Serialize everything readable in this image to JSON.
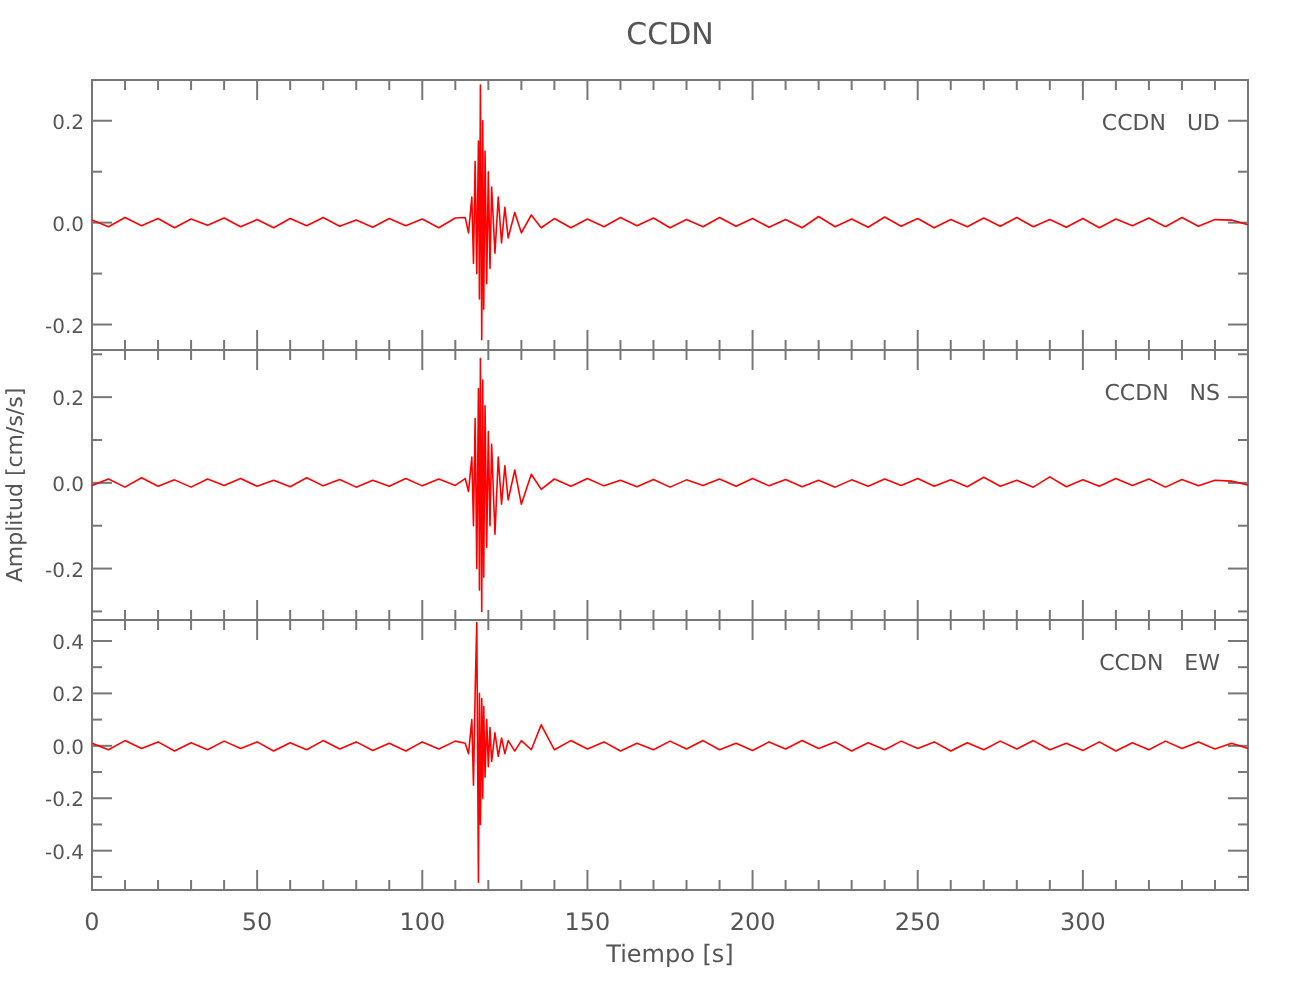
{
  "chart_data": [
    {
      "type": "line",
      "title": "CCDN",
      "annotations": [
        "CCDN   UD"
      ],
      "tick_labels": "y",
      "xlim": [
        0,
        350
      ],
      "ylim": [
        -0.25,
        0.28
      ],
      "xticks": [
        {
          "value": 0,
          "label": null
        },
        {
          "value": 10,
          "label": null
        },
        {
          "value": 20,
          "label": null
        },
        {
          "value": 30,
          "label": null
        },
        {
          "value": 40,
          "label": null
        },
        {
          "value": 50,
          "label": null
        },
        {
          "value": 60,
          "label": null
        },
        {
          "value": 70,
          "label": null
        },
        {
          "value": 80,
          "label": null
        },
        {
          "value": 90,
          "label": null
        },
        {
          "value": 100,
          "label": null
        },
        {
          "value": 110,
          "label": null
        },
        {
          "value": 120,
          "label": null
        },
        {
          "value": 130,
          "label": null
        },
        {
          "value": 140,
          "label": null
        },
        {
          "value": 150,
          "label": null
        },
        {
          "value": 160,
          "label": null
        },
        {
          "value": 170,
          "label": null
        },
        {
          "value": 180,
          "label": null
        },
        {
          "value": 190,
          "label": null
        },
        {
          "value": 200,
          "label": null
        },
        {
          "value": 210,
          "label": null
        },
        {
          "value": 220,
          "label": null
        },
        {
          "value": 230,
          "label": null
        },
        {
          "value": 240,
          "label": null
        },
        {
          "value": 250,
          "label": null
        },
        {
          "value": 260,
          "label": null
        },
        {
          "value": 270,
          "label": null
        },
        {
          "value": 280,
          "label": null
        },
        {
          "value": 290,
          "label": null
        },
        {
          "value": 300,
          "label": null
        },
        {
          "value": 310,
          "label": null
        },
        {
          "value": 320,
          "label": null
        },
        {
          "value": 330,
          "label": null
        },
        {
          "value": 340,
          "label": null
        }
      ],
      "yticks": [
        {
          "value": -0.2,
          "label": "-0.2"
        },
        {
          "value": -0.1,
          "label": null
        },
        {
          "value": 0,
          "label": "0.0"
        },
        {
          "value": 0.1,
          "label": null
        },
        {
          "value": 0.2,
          "label": "0.2"
        }
      ],
      "series": [
        {
          "color": "#ff0000",
          "x": [
            0,
            5,
            10,
            15,
            20,
            25,
            30,
            35,
            40,
            45,
            50,
            55,
            60,
            65,
            70,
            75,
            80,
            85,
            90,
            95,
            100,
            105,
            110,
            113,
            114,
            115,
            115.5,
            116,
            116.5,
            117,
            117.3,
            117.6,
            118,
            118.3,
            118.6,
            119,
            119.5,
            120,
            120.5,
            121,
            122,
            123,
            124,
            125,
            126,
            128,
            130,
            133,
            136,
            140,
            145,
            150,
            155,
            160,
            165,
            170,
            175,
            180,
            185,
            190,
            195,
            200,
            205,
            210,
            215,
            220,
            225,
            230,
            235,
            240,
            245,
            250,
            255,
            260,
            265,
            270,
            275,
            280,
            285,
            290,
            295,
            300,
            305,
            310,
            315,
            320,
            325,
            330,
            335,
            340,
            345,
            350
          ],
          "values": [
            0.005,
            -0.008,
            0.01,
            -0.006,
            0.008,
            -0.01,
            0.007,
            -0.005,
            0.009,
            -0.008,
            0.006,
            -0.01,
            0.008,
            -0.006,
            0.01,
            -0.007,
            0.005,
            -0.009,
            0.008,
            -0.006,
            0.007,
            -0.01,
            0.009,
            0.01,
            -0.02,
            0.05,
            -0.08,
            0.12,
            -0.1,
            0.16,
            -0.15,
            0.27,
            -0.23,
            0.2,
            -0.17,
            0.14,
            -0.12,
            0.1,
            -0.09,
            0.07,
            -0.06,
            0.05,
            -0.04,
            0.03,
            -0.03,
            0.02,
            -0.02,
            0.015,
            -0.01,
            0.008,
            -0.01,
            0.007,
            -0.008,
            0.01,
            -0.006,
            0.009,
            -0.01,
            0.006,
            -0.008,
            0.01,
            -0.007,
            0.008,
            -0.009,
            0.006,
            -0.01,
            0.012,
            -0.008,
            0.007,
            -0.009,
            0.011,
            -0.007,
            0.008,
            -0.01,
            0.006,
            -0.008,
            0.009,
            -0.007,
            0.01,
            -0.008,
            0.006,
            -0.009,
            0.008,
            -0.01,
            0.007,
            -0.006,
            0.009,
            -0.008,
            0.01,
            -0.007,
            0.006,
            0.005,
            -0.004
          ]
        }
      ]
    },
    {
      "type": "line",
      "ylabel": "Amplitud [cm/s/s]",
      "annotations": [
        "CCDN   NS"
      ],
      "tick_labels": "y",
      "xlim": [
        0,
        350
      ],
      "ylim": [
        -0.32,
        0.31
      ],
      "xticks": [
        {
          "value": 0,
          "label": null
        },
        {
          "value": 10,
          "label": null
        },
        {
          "value": 20,
          "label": null
        },
        {
          "value": 30,
          "label": null
        },
        {
          "value": 40,
          "label": null
        },
        {
          "value": 50,
          "label": null
        },
        {
          "value": 60,
          "label": null
        },
        {
          "value": 70,
          "label": null
        },
        {
          "value": 80,
          "label": null
        },
        {
          "value": 90,
          "label": null
        },
        {
          "value": 100,
          "label": null
        },
        {
          "value": 110,
          "label": null
        },
        {
          "value": 120,
          "label": null
        },
        {
          "value": 130,
          "label": null
        },
        {
          "value": 140,
          "label": null
        },
        {
          "value": 150,
          "label": null
        },
        {
          "value": 160,
          "label": null
        },
        {
          "value": 170,
          "label": null
        },
        {
          "value": 180,
          "label": null
        },
        {
          "value": 190,
          "label": null
        },
        {
          "value": 200,
          "label": null
        },
        {
          "value": 210,
          "label": null
        },
        {
          "value": 220,
          "label": null
        },
        {
          "value": 230,
          "label": null
        },
        {
          "value": 240,
          "label": null
        },
        {
          "value": 250,
          "label": null
        },
        {
          "value": 260,
          "label": null
        },
        {
          "value": 270,
          "label": null
        },
        {
          "value": 280,
          "label": null
        },
        {
          "value": 290,
          "label": null
        },
        {
          "value": 300,
          "label": null
        },
        {
          "value": 310,
          "label": null
        },
        {
          "value": 320,
          "label": null
        },
        {
          "value": 330,
          "label": null
        },
        {
          "value": 340,
          "label": null
        }
      ],
      "yticks": [
        {
          "value": -0.3,
          "label": null
        },
        {
          "value": -0.2,
          "label": "-0.2"
        },
        {
          "value": -0.1,
          "label": null
        },
        {
          "value": 0,
          "label": "0.0"
        },
        {
          "value": 0.1,
          "label": null
        },
        {
          "value": 0.2,
          "label": "0.2"
        },
        {
          "value": 0.3,
          "label": null
        }
      ],
      "series": [
        {
          "color": "#ff0000",
          "x": [
            0,
            5,
            10,
            15,
            20,
            25,
            30,
            35,
            40,
            45,
            50,
            55,
            60,
            65,
            70,
            75,
            80,
            85,
            90,
            95,
            100,
            105,
            110,
            113,
            114,
            115,
            115.5,
            116,
            116.5,
            117,
            117.3,
            117.6,
            118,
            118.3,
            118.6,
            119,
            119.5,
            120,
            120.5,
            121,
            122,
            123,
            124,
            125,
            126,
            128,
            130,
            133,
            136,
            140,
            145,
            150,
            155,
            160,
            165,
            170,
            175,
            180,
            185,
            190,
            195,
            200,
            205,
            210,
            215,
            220,
            225,
            230,
            235,
            240,
            245,
            250,
            255,
            260,
            265,
            270,
            275,
            280,
            285,
            290,
            295,
            300,
            305,
            310,
            315,
            320,
            325,
            330,
            335,
            340,
            345,
            350
          ],
          "values": [
            -0.006,
            0.009,
            -0.01,
            0.012,
            -0.008,
            0.007,
            -0.01,
            0.009,
            -0.006,
            0.01,
            -0.008,
            0.006,
            -0.009,
            0.012,
            -0.007,
            0.008,
            -0.01,
            0.006,
            -0.008,
            0.01,
            -0.007,
            0.009,
            -0.006,
            0.01,
            -0.02,
            0.06,
            -0.1,
            0.15,
            -0.2,
            0.22,
            -0.25,
            0.29,
            -0.3,
            0.24,
            -0.22,
            0.18,
            -0.15,
            0.12,
            -0.1,
            0.09,
            -0.12,
            0.06,
            -0.05,
            0.04,
            -0.04,
            0.03,
            -0.05,
            0.02,
            -0.015,
            0.009,
            -0.008,
            0.01,
            -0.007,
            0.006,
            -0.009,
            0.008,
            -0.01,
            0.007,
            -0.006,
            0.009,
            -0.008,
            0.01,
            -0.007,
            0.008,
            -0.009,
            0.006,
            -0.01,
            0.007,
            -0.008,
            0.009,
            -0.006,
            0.01,
            -0.008,
            0.007,
            -0.009,
            0.013,
            -0.008,
            0.006,
            -0.01,
            0.014,
            -0.009,
            0.007,
            -0.008,
            0.01,
            -0.006,
            0.009,
            -0.01,
            0.008,
            -0.007,
            0.006,
            0.004,
            -0.005
          ]
        }
      ]
    },
    {
      "type": "line",
      "xlabel": "Tiempo [s]",
      "annotations": [
        "CCDN   EW"
      ],
      "xlim": [
        0,
        350
      ],
      "ylim": [
        -0.55,
        0.48
      ],
      "xticks": [
        0,
        {
          "value": 10,
          "label": null
        },
        {
          "value": 20,
          "label": null
        },
        {
          "value": 30,
          "label": null
        },
        {
          "value": 40,
          "label": null
        },
        50,
        {
          "value": 60,
          "label": null
        },
        {
          "value": 70,
          "label": null
        },
        {
          "value": 80,
          "label": null
        },
        {
          "value": 90,
          "label": null
        },
        100,
        {
          "value": 110,
          "label": null
        },
        {
          "value": 120,
          "label": null
        },
        {
          "value": 130,
          "label": null
        },
        {
          "value": 140,
          "label": null
        },
        150,
        {
          "value": 160,
          "label": null
        },
        {
          "value": 170,
          "label": null
        },
        {
          "value": 180,
          "label": null
        },
        {
          "value": 190,
          "label": null
        },
        200,
        {
          "value": 210,
          "label": null
        },
        {
          "value": 220,
          "label": null
        },
        {
          "value": 230,
          "label": null
        },
        {
          "value": 240,
          "label": null
        },
        250,
        {
          "value": 260,
          "label": null
        },
        {
          "value": 270,
          "label": null
        },
        {
          "value": 280,
          "label": null
        },
        {
          "value": 290,
          "label": null
        },
        300,
        {
          "value": 310,
          "label": null
        },
        {
          "value": 320,
          "label": null
        },
        {
          "value": 330,
          "label": null
        },
        {
          "value": 340,
          "label": null
        }
      ],
      "yticks": [
        {
          "value": -0.5,
          "label": null
        },
        {
          "value": -0.4,
          "label": "-0.4"
        },
        {
          "value": -0.3,
          "label": null
        },
        {
          "value": -0.2,
          "label": "-0.2"
        },
        {
          "value": -0.1,
          "label": null
        },
        {
          "value": 0,
          "label": "0.0"
        },
        {
          "value": 0.1,
          "label": null
        },
        {
          "value": 0.2,
          "label": "0.2"
        },
        {
          "value": 0.3,
          "label": null
        },
        {
          "value": 0.4,
          "label": "0.4"
        }
      ],
      "series": [
        {
          "color": "#ff0000",
          "x": [
            0,
            5,
            10,
            15,
            20,
            25,
            30,
            35,
            40,
            45,
            50,
            55,
            60,
            65,
            70,
            75,
            80,
            85,
            90,
            95,
            100,
            105,
            110,
            113,
            114,
            115,
            115.5,
            116,
            116.5,
            117,
            117.3,
            117.6,
            118,
            118.3,
            118.6,
            119,
            119.5,
            120,
            120.5,
            121,
            122,
            123,
            124,
            125,
            126,
            128,
            130,
            133,
            136,
            140,
            145,
            150,
            155,
            160,
            165,
            170,
            175,
            180,
            185,
            190,
            195,
            200,
            205,
            210,
            215,
            220,
            225,
            230,
            235,
            240,
            245,
            250,
            255,
            260,
            265,
            270,
            275,
            280,
            285,
            290,
            295,
            300,
            305,
            310,
            315,
            320,
            325,
            330,
            335,
            340,
            345,
            350
          ],
          "values": [
            0.01,
            -0.015,
            0.02,
            -0.01,
            0.015,
            -0.02,
            0.012,
            -0.015,
            0.018,
            -0.01,
            0.015,
            -0.02,
            0.012,
            -0.015,
            0.02,
            -0.012,
            0.015,
            -0.018,
            0.01,
            -0.02,
            0.015,
            -0.012,
            0.018,
            0.01,
            -0.03,
            0.1,
            -0.15,
            0.2,
            0.47,
            -0.52,
            0.2,
            -0.3,
            0.18,
            -0.2,
            0.15,
            -0.12,
            0.1,
            -0.08,
            0.07,
            -0.06,
            0.05,
            -0.04,
            0.03,
            -0.03,
            0.02,
            -0.02,
            0.02,
            -0.015,
            0.08,
            -0.015,
            0.02,
            -0.012,
            0.015,
            -0.02,
            0.01,
            -0.015,
            0.018,
            -0.012,
            0.02,
            -0.015,
            0.01,
            -0.018,
            0.015,
            -0.012,
            0.02,
            -0.01,
            0.015,
            -0.02,
            0.012,
            -0.015,
            0.018,
            -0.01,
            0.015,
            -0.02,
            0.012,
            -0.015,
            0.018,
            -0.012,
            0.02,
            -0.015,
            0.01,
            -0.018,
            0.015,
            -0.02,
            0.012,
            -0.015,
            0.018,
            -0.01,
            0.015,
            -0.012,
            0.01,
            -0.01
          ]
        }
      ]
    }
  ]
}
